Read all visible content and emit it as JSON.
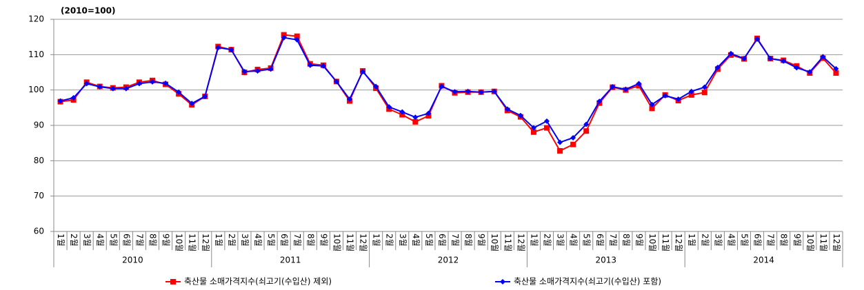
{
  "chart_data": {
    "type": "line",
    "annotation": "(2010=100)",
    "categories": [
      "1월",
      "2월",
      "3월",
      "4월",
      "5월",
      "6월",
      "7월",
      "8월",
      "9월",
      "10월",
      "11월",
      "12월",
      "1월",
      "2월",
      "3월",
      "4월",
      "5월",
      "6월",
      "7월",
      "8월",
      "9월",
      "10월",
      "11월",
      "12월",
      "1월",
      "2월",
      "3월",
      "4월",
      "5월",
      "6월",
      "7월",
      "8월",
      "9월",
      "10월",
      "11월",
      "12월",
      "1월",
      "2월",
      "3월",
      "4월",
      "5월",
      "6월",
      "7월",
      "8월",
      "9월",
      "10월",
      "11월",
      "12월",
      "1월",
      "2월",
      "3월",
      "4월",
      "5월",
      "6월",
      "7월",
      "8월",
      "9월",
      "10월",
      "11월",
      "12월"
    ],
    "groups": [
      "2010",
      "2011",
      "2012",
      "2013",
      "2014"
    ],
    "series": [
      {
        "name": "축산물 소매가격지수(쇠고기(수입산) 제외)",
        "color": "#ff0000",
        "marker": "square",
        "values": [
          96.7,
          97.2,
          102.2,
          101.0,
          100.6,
          100.8,
          102.2,
          102.7,
          101.6,
          98.9,
          95.8,
          98.2,
          112.3,
          111.4,
          105.0,
          105.8,
          106.2,
          115.6,
          115.2,
          107.4,
          107.0,
          102.4,
          96.9,
          105.4,
          100.5,
          94.6,
          93.0,
          91.0,
          92.7,
          101.2,
          99.2,
          99.4,
          99.4,
          99.6,
          94.2,
          92.4,
          88.1,
          89.3,
          82.8,
          84.6,
          88.4,
          96.3,
          100.8,
          100.0,
          101.2,
          94.8,
          98.6,
          97.0,
          98.6,
          99.3,
          105.9,
          109.9,
          108.8,
          114.6,
          108.9,
          108.4,
          106.8,
          104.8,
          109.0,
          104.8
        ]
      },
      {
        "name": "축산물 소매가격지수(쇠고기(수입산) 포함)",
        "color": "#0000ff",
        "marker": "diamond",
        "values": [
          96.9,
          97.8,
          101.8,
          100.9,
          100.4,
          100.4,
          101.8,
          102.3,
          101.9,
          99.4,
          96.2,
          98.2,
          112.0,
          111.4,
          105.2,
          105.4,
          105.9,
          114.8,
          114.2,
          107.0,
          106.8,
          102.4,
          97.4,
          105.2,
          101.0,
          95.2,
          93.8,
          92.3,
          93.4,
          101.0,
          99.5,
          99.6,
          99.4,
          99.6,
          94.6,
          92.8,
          89.3,
          91.2,
          85.2,
          86.5,
          90.3,
          96.8,
          100.9,
          100.2,
          101.8,
          95.9,
          98.4,
          97.4,
          99.6,
          100.8,
          106.4,
          110.3,
          108.9,
          114.4,
          108.9,
          108.2,
          106.3,
          105.1,
          109.4,
          106.0
        ]
      }
    ],
    "ylim": [
      60,
      120
    ],
    "yticks": [
      60,
      70,
      80,
      90,
      100,
      110,
      120
    ],
    "grid": true
  }
}
